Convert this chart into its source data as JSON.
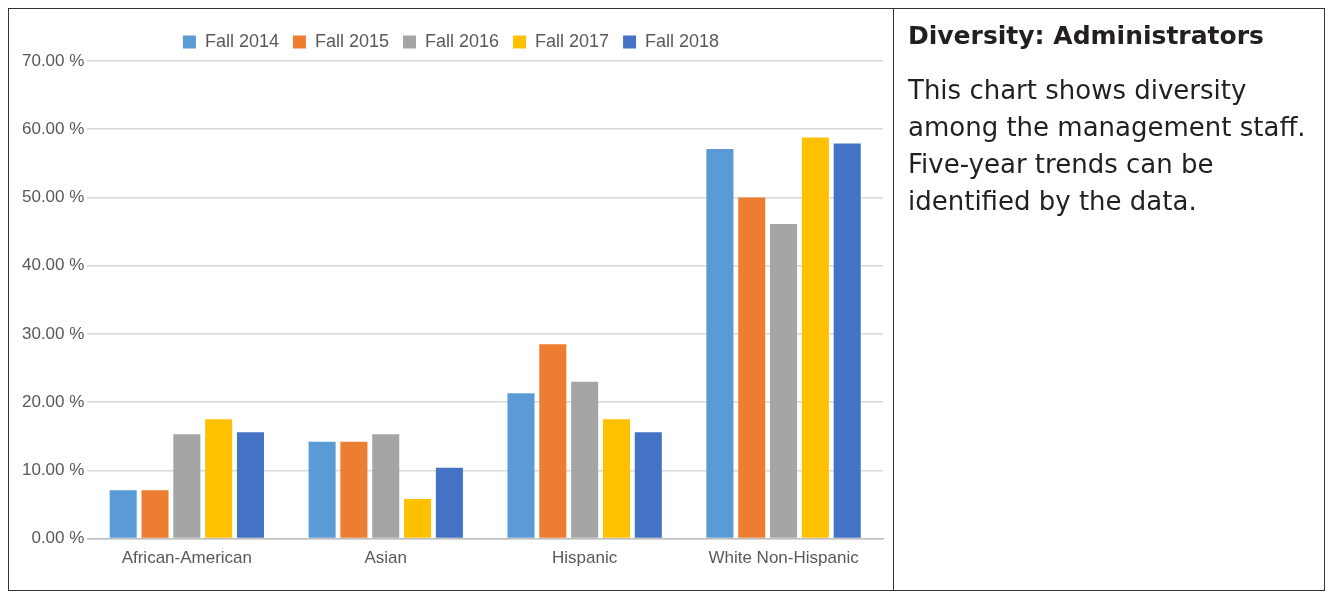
{
  "chart_data": {
    "type": "bar",
    "title": "Diversity: Administrators",
    "subtitle": "This chart shows diversity among the management staff. Five-year trends can be identified by the data.",
    "categories": [
      "African-American",
      "Asian",
      "Hispanic",
      "White Non-Hispanic"
    ],
    "series": [
      {
        "name": "Fall 2014",
        "color": "#5b9bd5",
        "values": [
          7.1,
          14.2,
          21.3,
          57.1
        ]
      },
      {
        "name": "Fall 2015",
        "color": "#ed7d31",
        "values": [
          7.1,
          14.2,
          28.5,
          50.0
        ]
      },
      {
        "name": "Fall 2016",
        "color": "#a5a5a5",
        "values": [
          15.3,
          15.3,
          23.0,
          46.1
        ]
      },
      {
        "name": "Fall 2017",
        "color": "#ffc000",
        "values": [
          17.5,
          5.8,
          17.5,
          58.8
        ]
      },
      {
        "name": "Fall 2018",
        "color": "#4472c4",
        "values": [
          15.6,
          10.4,
          15.6,
          57.9
        ]
      }
    ],
    "ylim": [
      0,
      70
    ],
    "yticks": [
      {
        "value": 0,
        "label": "0.00 %"
      },
      {
        "value": 10,
        "label": "10.00 %"
      },
      {
        "value": 20,
        "label": "20.00 %"
      },
      {
        "value": 30,
        "label": "30.00 %"
      },
      {
        "value": 40,
        "label": "40.00 %"
      },
      {
        "value": 50,
        "label": "50.00 %"
      },
      {
        "value": 60,
        "label": "60.00 %"
      },
      {
        "value": 70,
        "label": "70.00 %"
      }
    ],
    "grid": "y",
    "legend": "top"
  }
}
